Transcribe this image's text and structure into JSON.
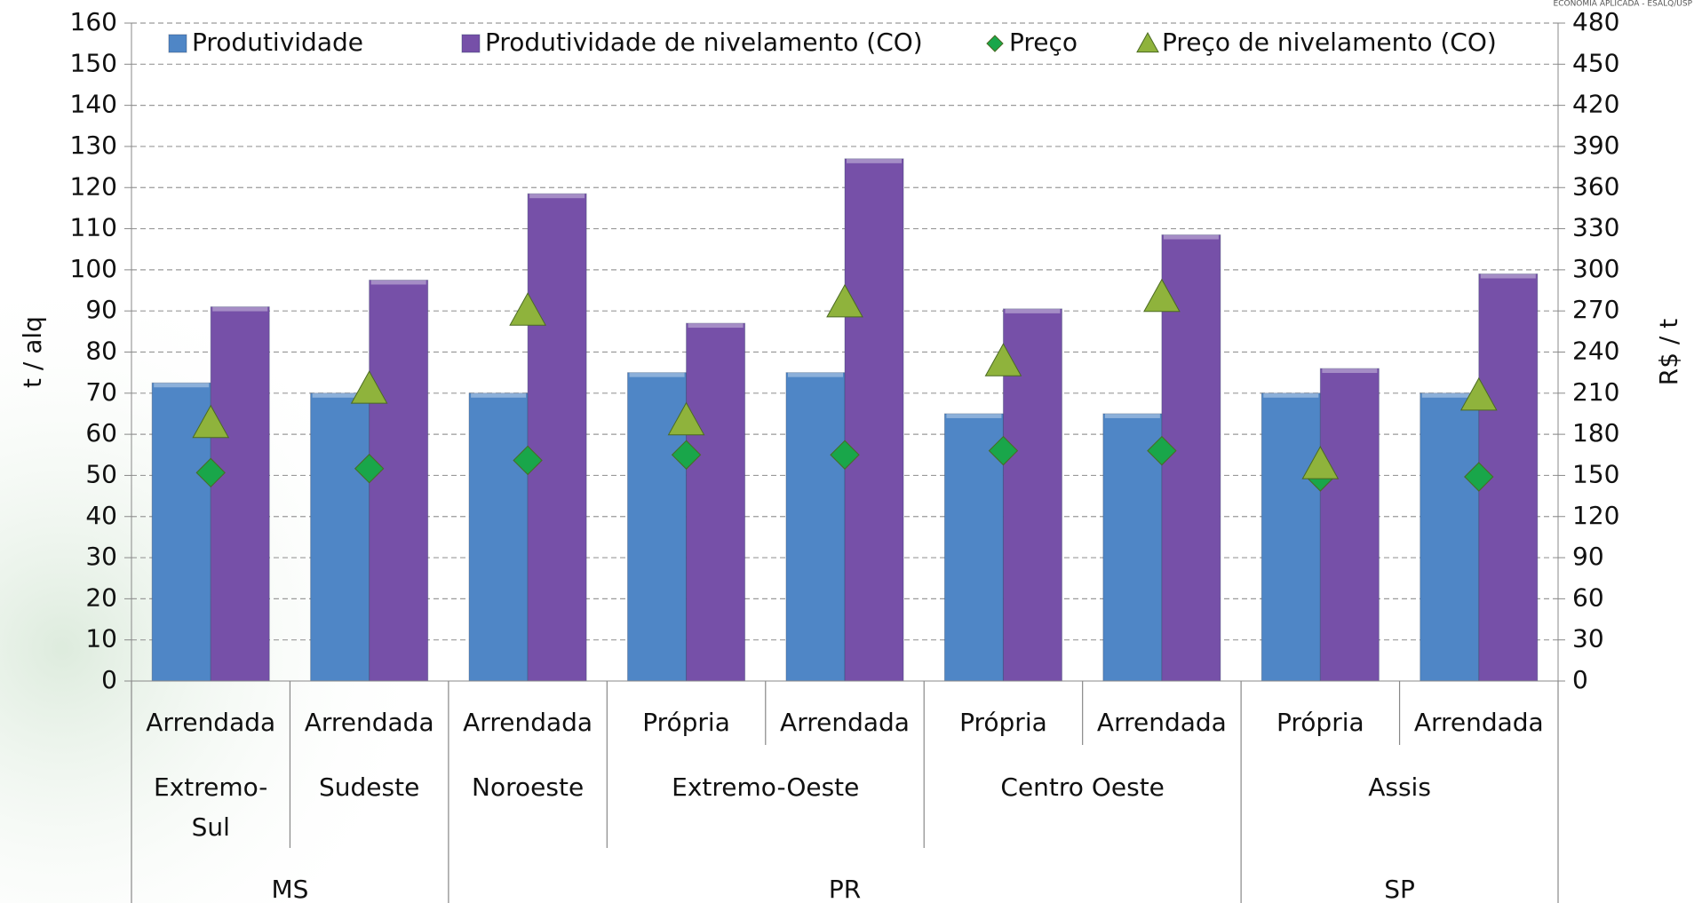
{
  "logo_text": "ECONOMIA APLICADA - ESALQ/USP",
  "chart_data": {
    "type": "bar",
    "ylabel": "t / alq",
    "y2label": "R$ / t",
    "groups": [
      {
        "label": "MS",
        "regions": [
          {
            "label": "Extremo-Sul",
            "categories": [
              "Arrendada"
            ]
          },
          {
            "label": "Sudeste",
            "categories": [
              "Arrendada"
            ]
          }
        ]
      },
      {
        "label": "PR",
        "regions": [
          {
            "label": "Noroeste",
            "categories": [
              "Arrendada"
            ]
          },
          {
            "label": "Extremo-Oeste",
            "categories": [
              "Própria",
              "Arrendada"
            ]
          },
          {
            "label": "Centro Oeste",
            "categories": [
              "Própria",
              "Arrendada"
            ]
          }
        ]
      },
      {
        "label": "SP",
        "regions": [
          {
            "label": "Assis",
            "categories": [
              "Própria",
              "Arrendada"
            ]
          }
        ]
      }
    ],
    "series": [
      {
        "name": "Produtividade",
        "kind": "bar",
        "color": "#4f86c6",
        "values": [
          72.5,
          70,
          70,
          75,
          75,
          65,
          65,
          70,
          70
        ]
      },
      {
        "name": "Produtividade de nivelamento (CO)",
        "kind": "bar",
        "color": "#7650a8",
        "values": [
          91,
          97.5,
          118.5,
          87,
          127,
          90.5,
          108.5,
          76,
          99
        ]
      },
      {
        "name": "Preço",
        "kind": "diamond",
        "axis": "y2",
        "color": "#19a64a",
        "values": [
          152,
          155,
          161,
          165,
          165,
          168,
          168,
          149,
          149
        ]
      },
      {
        "name": "Preço de nivelamento (CO)",
        "kind": "triangle",
        "axis": "y2",
        "color": "#8fb33c",
        "values": [
          188,
          213,
          270,
          190,
          276,
          233,
          280,
          158,
          208
        ]
      }
    ],
    "ylim": [
      0,
      160
    ],
    "yticks": [
      0,
      10,
      20,
      30,
      40,
      50,
      60,
      70,
      80,
      90,
      100,
      110,
      120,
      130,
      140,
      150,
      160
    ],
    "y2lim": [
      0,
      480
    ],
    "y2ticks": [
      0,
      30,
      60,
      90,
      120,
      150,
      180,
      210,
      240,
      270,
      300,
      330,
      360,
      390,
      420,
      450,
      480
    ],
    "grid": true,
    "legend": "top"
  }
}
